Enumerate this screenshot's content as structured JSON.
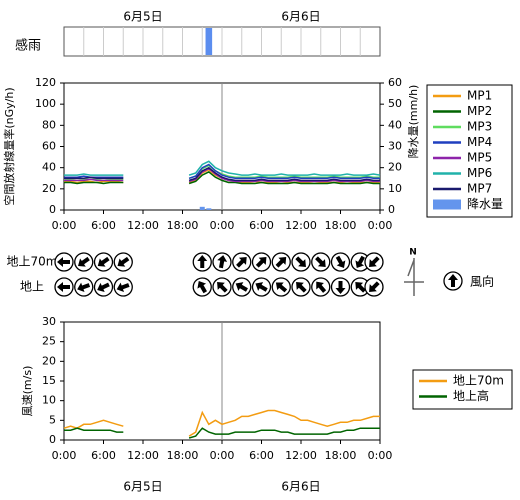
{
  "chart_data": [
    {
      "type": "timeline",
      "label": "感雨",
      "dates": [
        "6月5日",
        "6月6日"
      ],
      "xlim": [
        0,
        48
      ],
      "periods": [
        {
          "start": 21.5,
          "end": 22.5
        }
      ],
      "color": "#5b8def"
    },
    {
      "type": "line",
      "ylabel": "空間放射線量率(nGy/h)",
      "y2label": "降水量(mm/h)",
      "xlim": [
        0,
        48
      ],
      "ylim": [
        0,
        120
      ],
      "yticks": [
        0,
        20,
        40,
        60,
        80,
        100,
        120
      ],
      "y2lim": [
        0,
        60
      ],
      "y2ticks": [
        0,
        10,
        20,
        30,
        40,
        50,
        60
      ],
      "xticks": [
        {
          "value": 0,
          "label": "0:00"
        },
        {
          "value": 6,
          "label": "6:00"
        },
        {
          "value": 12,
          "label": "12:00"
        },
        {
          "value": 18,
          "label": "18:00"
        },
        {
          "value": 24,
          "label": "0:00"
        },
        {
          "value": 30,
          "label": "6:00"
        },
        {
          "value": 36,
          "label": "12:00"
        },
        {
          "value": 42,
          "label": "18:00"
        },
        {
          "value": 48,
          "label": "0:00"
        }
      ],
      "vline": 24,
      "x": [
        0,
        1,
        2,
        3,
        4,
        5,
        6,
        7,
        8,
        9,
        10,
        11,
        12,
        13,
        14,
        15,
        16,
        17,
        18,
        19,
        20,
        21,
        22,
        23,
        24,
        25,
        26,
        27,
        28,
        29,
        30,
        31,
        32,
        33,
        34,
        35,
        36,
        37,
        38,
        39,
        40,
        41,
        42,
        43,
        44,
        45,
        46,
        47,
        48
      ],
      "series": [
        {
          "name": "MP1",
          "color": "#f39c12",
          "values": [
            27,
            27,
            26,
            27,
            27,
            26,
            27,
            27,
            27,
            26,
            null,
            null,
            null,
            null,
            null,
            null,
            null,
            null,
            null,
            26,
            28,
            35,
            38,
            33,
            30,
            28,
            27,
            26,
            26,
            27,
            26,
            26,
            26,
            27,
            26,
            26,
            26,
            26,
            27,
            26,
            26,
            26,
            26,
            27,
            26,
            26,
            26,
            26,
            26
          ]
        },
        {
          "name": "MP2",
          "color": "#006400",
          "values": [
            26,
            26,
            25,
            26,
            26,
            26,
            25,
            26,
            26,
            26,
            null,
            null,
            null,
            null,
            null,
            null,
            null,
            null,
            null,
            25,
            27,
            33,
            36,
            31,
            28,
            26,
            26,
            25,
            25,
            25,
            26,
            25,
            25,
            25,
            25,
            26,
            25,
            25,
            25,
            25,
            25,
            26,
            25,
            25,
            25,
            25,
            26,
            25,
            25
          ]
        },
        {
          "name": "MP3",
          "color": "#5fdc5f",
          "values": [
            29,
            29,
            30,
            29,
            29,
            29,
            30,
            29,
            29,
            29,
            null,
            null,
            null,
            null,
            null,
            null,
            null,
            null,
            null,
            30,
            32,
            39,
            42,
            37,
            34,
            32,
            31,
            31,
            31,
            31,
            32,
            31,
            31,
            31,
            31,
            32,
            31,
            31,
            31,
            31,
            31,
            32,
            31,
            31,
            31,
            31,
            32,
            31,
            31
          ]
        },
        {
          "name": "MP4",
          "color": "#1f3fbf",
          "values": [
            31,
            31,
            31,
            32,
            31,
            31,
            31,
            31,
            31,
            31,
            null,
            null,
            null,
            null,
            null,
            null,
            null,
            null,
            null,
            30,
            32,
            40,
            43,
            37,
            33,
            31,
            30,
            30,
            30,
            30,
            31,
            30,
            30,
            30,
            30,
            31,
            30,
            30,
            30,
            30,
            30,
            31,
            30,
            30,
            30,
            30,
            31,
            30,
            30
          ]
        },
        {
          "name": "MP5",
          "color": "#8e24aa",
          "values": [
            28,
            28,
            28,
            28,
            29,
            28,
            28,
            28,
            28,
            28,
            null,
            null,
            null,
            null,
            null,
            null,
            null,
            null,
            null,
            27,
            29,
            36,
            39,
            34,
            30,
            28,
            27,
            27,
            27,
            27,
            28,
            27,
            27,
            27,
            27,
            28,
            27,
            27,
            27,
            27,
            27,
            28,
            27,
            27,
            27,
            27,
            28,
            27,
            27
          ]
        },
        {
          "name": "MP6",
          "color": "#20b2aa",
          "values": [
            33,
            33,
            33,
            34,
            33,
            33,
            33,
            33,
            33,
            33,
            null,
            null,
            null,
            null,
            null,
            null,
            null,
            null,
            null,
            33,
            35,
            43,
            46,
            40,
            37,
            35,
            34,
            33,
            33,
            34,
            33,
            33,
            33,
            34,
            33,
            33,
            33,
            33,
            34,
            33,
            33,
            33,
            33,
            34,
            33,
            33,
            33,
            34,
            33
          ]
        },
        {
          "name": "MP7",
          "color": "#1a1a6e",
          "values": [
            30,
            30,
            30,
            30,
            31,
            30,
            30,
            30,
            30,
            30,
            null,
            null,
            null,
            null,
            null,
            null,
            null,
            null,
            null,
            28,
            30,
            37,
            40,
            35,
            31,
            29,
            28,
            28,
            28,
            28,
            29,
            28,
            28,
            28,
            28,
            29,
            28,
            28,
            28,
            28,
            28,
            29,
            28,
            28,
            28,
            28,
            29,
            28,
            28
          ]
        }
      ],
      "bars": {
        "name": "降水量",
        "color": "#6495ed",
        "axis": "y2",
        "x": [
          21,
          22
        ],
        "values": [
          1.5,
          0.8
        ]
      }
    },
    {
      "type": "wind_direction",
      "north": "N",
      "legend_label": "風向",
      "xlim": [
        0,
        48
      ],
      "x": [
        0,
        3,
        6,
        9,
        21,
        24,
        27,
        30,
        33,
        36,
        39,
        42,
        45,
        48
      ],
      "rows": [
        {
          "label": "地上70m",
          "directions": [
            270,
            235,
            235,
            235,
            0,
            10,
            45,
            45,
            45,
            135,
            135,
            150,
            210,
            225
          ]
        },
        {
          "label": "地上",
          "directions": [
            270,
            250,
            245,
            250,
            330,
            315,
            300,
            300,
            310,
            315,
            320,
            180,
            315,
            225
          ]
        }
      ]
    },
    {
      "type": "line",
      "ylabel": "風速(m/s)",
      "dates": [
        "6月5日",
        "6月6日"
      ],
      "xlim": [
        0,
        48
      ],
      "ylim": [
        0,
        30
      ],
      "yticks": [
        0,
        5,
        10,
        15,
        20,
        25,
        30
      ],
      "xticks": [
        {
          "value": 0,
          "label": "0:00"
        },
        {
          "value": 6,
          "label": "6:00"
        },
        {
          "value": 12,
          "label": "12:00"
        },
        {
          "value": 18,
          "label": "18:00"
        },
        {
          "value": 24,
          "label": "0:00"
        },
        {
          "value": 30,
          "label": "6:00"
        },
        {
          "value": 36,
          "label": "12:00"
        },
        {
          "value": 42,
          "label": "18:00"
        },
        {
          "value": 48,
          "label": "0:00"
        }
      ],
      "vline": 24,
      "x": [
        0,
        1,
        2,
        3,
        4,
        5,
        6,
        7,
        8,
        9,
        10,
        11,
        12,
        13,
        14,
        15,
        16,
        17,
        18,
        19,
        20,
        21,
        22,
        23,
        24,
        25,
        26,
        27,
        28,
        29,
        30,
        31,
        32,
        33,
        34,
        35,
        36,
        37,
        38,
        39,
        40,
        41,
        42,
        43,
        44,
        45,
        46,
        47,
        48
      ],
      "series": [
        {
          "name": "地上70m",
          "color": "#f39c12",
          "values": [
            3,
            3.5,
            3,
            4,
            4,
            4.5,
            5,
            4.5,
            4,
            3.5,
            null,
            null,
            null,
            null,
            null,
            null,
            null,
            null,
            null,
            1,
            2,
            7,
            4,
            5,
            4,
            4.5,
            5,
            6,
            6,
            6.5,
            7,
            7.5,
            7.5,
            7,
            6.5,
            6,
            5,
            5,
            4.5,
            4,
            3.5,
            4,
            4.5,
            4.5,
            5,
            5,
            5.5,
            6,
            6
          ]
        },
        {
          "name": "地上高",
          "color": "#006400",
          "values": [
            2.5,
            2.5,
            3,
            2.5,
            2.5,
            2.5,
            2.5,
            2.5,
            2,
            2,
            null,
            null,
            null,
            null,
            null,
            null,
            null,
            null,
            null,
            0.5,
            1,
            3,
            2,
            1.5,
            1.5,
            1.5,
            2,
            2,
            2,
            2,
            2.5,
            2.5,
            2.5,
            2,
            2,
            1.5,
            1.5,
            1.5,
            1.5,
            1.5,
            1.5,
            2,
            2,
            2.5,
            2.5,
            3,
            3,
            3,
            3
          ]
        }
      ]
    }
  ]
}
